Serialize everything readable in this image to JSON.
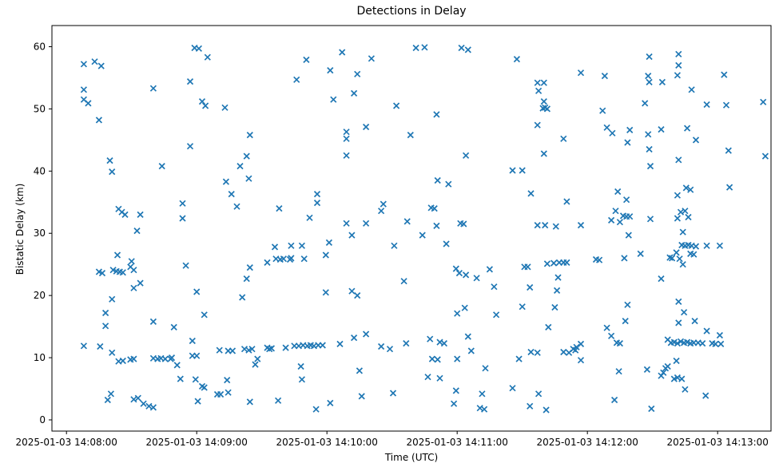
{
  "figure": {
    "title": "Detections in Delay",
    "xlabel": "Time (UTC)",
    "ylabel": "Bistatic Delay (km)"
  },
  "chart_data": {
    "type": "scatter",
    "title": "Detections in Delay",
    "xlabel": "Time (UTC)",
    "ylabel": "Bistatic Delay (km)",
    "marker": "x",
    "marker_color": "#1f77b4",
    "marker_size_px": 7,
    "grid": false,
    "legend": null,
    "x_unit": "seconds after 2025-01-03 14:08:00 UTC",
    "x_ticks_seconds": [
      0,
      60,
      120,
      180,
      240,
      300
    ],
    "x_tick_labels": [
      "2025-01-03 14:08:00",
      "2025-01-03 14:09:00",
      "2025-01-03 14:10:00",
      "2025-01-03 14:11:00",
      "2025-01-03 14:12:00",
      "2025-01-03 14:13:00"
    ],
    "y_ticks": [
      0,
      10,
      20,
      30,
      40,
      50,
      60
    ],
    "xlim_seconds": [
      -6.7,
      324.6
    ],
    "ylim": [
      -1.8,
      63.4
    ],
    "points": [
      [
        8,
        57.2
      ],
      [
        13,
        57.6
      ],
      [
        16,
        56.9
      ],
      [
        8,
        53.1
      ],
      [
        8,
        51.5
      ],
      [
        10,
        50.9
      ],
      [
        40,
        53.3
      ],
      [
        15,
        48.2
      ],
      [
        20,
        41.7
      ],
      [
        21,
        39.9
      ],
      [
        44,
        40.8
      ],
      [
        24,
        33.9
      ],
      [
        25.5,
        33.4
      ],
      [
        27,
        33.0
      ],
      [
        34,
        33.0
      ],
      [
        32.5,
        30.4
      ],
      [
        23.5,
        26.5
      ],
      [
        30,
        25.5
      ],
      [
        15,
        23.8
      ],
      [
        16.5,
        23.6
      ],
      [
        21.5,
        24.1
      ],
      [
        23,
        23.9
      ],
      [
        24.5,
        23.8
      ],
      [
        26,
        23.7
      ],
      [
        29.5,
        24.6
      ],
      [
        31,
        24.1
      ],
      [
        34,
        22.0
      ],
      [
        31,
        21.2
      ],
      [
        21,
        19.4
      ],
      [
        18,
        17.2
      ],
      [
        18,
        15.1
      ],
      [
        40,
        15.8
      ],
      [
        8,
        11.9
      ],
      [
        15.5,
        11.8
      ],
      [
        21,
        10.8
      ],
      [
        24,
        9.4
      ],
      [
        26,
        9.5
      ],
      [
        29.5,
        9.7
      ],
      [
        31,
        9.8
      ],
      [
        40,
        9.9
      ],
      [
        42,
        9.8
      ],
      [
        43.5,
        9.9
      ],
      [
        45.5,
        9.8
      ],
      [
        48,
        9.8
      ],
      [
        20.5,
        4.2
      ],
      [
        19,
        3.2
      ],
      [
        31,
        3.3
      ],
      [
        33,
        3.5
      ],
      [
        35.5,
        2.6
      ],
      [
        38,
        2.2
      ],
      [
        40,
        2.0
      ],
      [
        59,
        59.8
      ],
      [
        61,
        59.7
      ],
      [
        65,
        58.3
      ],
      [
        57,
        54.4
      ],
      [
        62.5,
        51.2
      ],
      [
        64,
        50.5
      ],
      [
        73,
        50.2
      ],
      [
        84.5,
        45.8
      ],
      [
        57,
        44.0
      ],
      [
        83,
        42.4
      ],
      [
        80,
        40.8
      ],
      [
        84,
        38.8
      ],
      [
        73.5,
        38.3
      ],
      [
        76,
        36.3
      ],
      [
        53.5,
        34.8
      ],
      [
        78.5,
        34.3
      ],
      [
        98,
        34.0
      ],
      [
        53.5,
        32.4
      ],
      [
        96,
        27.8
      ],
      [
        96.5,
        25.9
      ],
      [
        98.5,
        25.8
      ],
      [
        100,
        25.9
      ],
      [
        103,
        25.8
      ],
      [
        92.5,
        25.3
      ],
      [
        55,
        24.8
      ],
      [
        84.5,
        24.5
      ],
      [
        83,
        22.7
      ],
      [
        60,
        20.6
      ],
      [
        81,
        19.7
      ],
      [
        63.5,
        16.9
      ],
      [
        49.5,
        14.9
      ],
      [
        58,
        12.7
      ],
      [
        48.5,
        10.0
      ],
      [
        58,
        10.3
      ],
      [
        60,
        10.3
      ],
      [
        70.5,
        11.2
      ],
      [
        74.5,
        11.1
      ],
      [
        76.5,
        11.1
      ],
      [
        82,
        11.4
      ],
      [
        84,
        11.2
      ],
      [
        85.5,
        11.4
      ],
      [
        92.5,
        11.6
      ],
      [
        93.5,
        11.4
      ],
      [
        94.5,
        11.5
      ],
      [
        101,
        11.6
      ],
      [
        88,
        9.8
      ],
      [
        87,
        8.9
      ],
      [
        51,
        8.8
      ],
      [
        52.5,
        6.6
      ],
      [
        59.5,
        6.5
      ],
      [
        62.5,
        5.4
      ],
      [
        63.5,
        5.2
      ],
      [
        74,
        6.4
      ],
      [
        69.5,
        4.1
      ],
      [
        71,
        4.1
      ],
      [
        74.5,
        4.4
      ],
      [
        60.5,
        3.0
      ],
      [
        84.5,
        2.9
      ],
      [
        97.5,
        3.1
      ],
      [
        127,
        59.1
      ],
      [
        110.5,
        57.9
      ],
      [
        140.5,
        58.1
      ],
      [
        121.5,
        56.2
      ],
      [
        134,
        55.6
      ],
      [
        106,
        54.7
      ],
      [
        132.5,
        52.5
      ],
      [
        123,
        51.5
      ],
      [
        152,
        50.5
      ],
      [
        138,
        47.1
      ],
      [
        129,
        46.3
      ],
      [
        129,
        45.2
      ],
      [
        158.5,
        45.8
      ],
      [
        129,
        42.5
      ],
      [
        115.5,
        36.3
      ],
      [
        115.5,
        34.9
      ],
      [
        146,
        34.7
      ],
      [
        145,
        33.6
      ],
      [
        112,
        32.5
      ],
      [
        129,
        31.6
      ],
      [
        138,
        31.6
      ],
      [
        157,
        31.9
      ],
      [
        131.5,
        29.7
      ],
      [
        121,
        28.5
      ],
      [
        108.5,
        28.0
      ],
      [
        151,
        28.0
      ],
      [
        103.5,
        28.0
      ],
      [
        119.5,
        26.5
      ],
      [
        109.5,
        25.9
      ],
      [
        103.5,
        26.0
      ],
      [
        155.5,
        22.3
      ],
      [
        119.5,
        20.5
      ],
      [
        131.5,
        20.7
      ],
      [
        134,
        20.0
      ],
      [
        138,
        13.8
      ],
      [
        132.5,
        13.2
      ],
      [
        105,
        11.9
      ],
      [
        107,
        11.9
      ],
      [
        109,
        12.0
      ],
      [
        111,
        11.9
      ],
      [
        112.5,
        12.0
      ],
      [
        114,
        11.9
      ],
      [
        116,
        12.0
      ],
      [
        118,
        12.0
      ],
      [
        126,
        12.2
      ],
      [
        145,
        11.8
      ],
      [
        149,
        11.4
      ],
      [
        156.5,
        12.3
      ],
      [
        108,
        8.6
      ],
      [
        135,
        7.9
      ],
      [
        108.5,
        6.5
      ],
      [
        150.5,
        4.3
      ],
      [
        136,
        3.8
      ],
      [
        121.5,
        2.7
      ],
      [
        115,
        1.7
      ],
      [
        161,
        59.8
      ],
      [
        165,
        59.9
      ],
      [
        182,
        59.8
      ],
      [
        185,
        59.5
      ],
      [
        207.5,
        58.0
      ],
      [
        170.5,
        49.1
      ],
      [
        184,
        42.5
      ],
      [
        205.5,
        40.1
      ],
      [
        210,
        40.1
      ],
      [
        171,
        38.5
      ],
      [
        176,
        37.9
      ],
      [
        168,
        34.1
      ],
      [
        169.5,
        34.0
      ],
      [
        170.5,
        31.2
      ],
      [
        181.5,
        31.6
      ],
      [
        183,
        31.5
      ],
      [
        164,
        29.7
      ],
      [
        175,
        28.3
      ],
      [
        179.5,
        24.3
      ],
      [
        181,
        23.6
      ],
      [
        184,
        23.3
      ],
      [
        189,
        22.8
      ],
      [
        195,
        24.2
      ],
      [
        211,
        24.6
      ],
      [
        212.5,
        24.6
      ],
      [
        197,
        21.4
      ],
      [
        213.5,
        21.3
      ],
      [
        210,
        18.2
      ],
      [
        183.5,
        18.0
      ],
      [
        180,
        17.1
      ],
      [
        198,
        16.9
      ],
      [
        185,
        13.4
      ],
      [
        167.5,
        13.0
      ],
      [
        172,
        12.5
      ],
      [
        174,
        12.3
      ],
      [
        186.5,
        11.1
      ],
      [
        168.5,
        9.8
      ],
      [
        171,
        9.7
      ],
      [
        180,
        9.8
      ],
      [
        208.5,
        9.8
      ],
      [
        193,
        8.3
      ],
      [
        166.5,
        6.9
      ],
      [
        172,
        6.7
      ],
      [
        205.5,
        5.1
      ],
      [
        179.5,
        4.7
      ],
      [
        191.5,
        4.2
      ],
      [
        178.5,
        2.6
      ],
      [
        190.5,
        1.9
      ],
      [
        192.5,
        1.7
      ],
      [
        213.5,
        2.2
      ],
      [
        237,
        55.8
      ],
      [
        248,
        55.3
      ],
      [
        268.5,
        58.4
      ],
      [
        217,
        54.2
      ],
      [
        220,
        54.2
      ],
      [
        217.5,
        52.9
      ],
      [
        268,
        55.3
      ],
      [
        268.5,
        54.3
      ],
      [
        220,
        51.2
      ],
      [
        219.5,
        50.1
      ],
      [
        221.5,
        50.0
      ],
      [
        220.5,
        50.2
      ],
      [
        247,
        49.7
      ],
      [
        266.5,
        50.9
      ],
      [
        217,
        47.4
      ],
      [
        249,
        47.0
      ],
      [
        251.5,
        46.1
      ],
      [
        259.5,
        46.6
      ],
      [
        258.5,
        44.6
      ],
      [
        268,
        45.9
      ],
      [
        268.5,
        43.5
      ],
      [
        269,
        40.8
      ],
      [
        229,
        45.2
      ],
      [
        220,
        42.8
      ],
      [
        254,
        36.7
      ],
      [
        258,
        35.4
      ],
      [
        214,
        36.4
      ],
      [
        230.5,
        35.1
      ],
      [
        253,
        33.6
      ],
      [
        256.5,
        32.8
      ],
      [
        258,
        32.7
      ],
      [
        251,
        32.1
      ],
      [
        255,
        31.8
      ],
      [
        259.5,
        32.7
      ],
      [
        217,
        31.3
      ],
      [
        220.5,
        31.3
      ],
      [
        225.5,
        31.1
      ],
      [
        237,
        31.3
      ],
      [
        269,
        32.3
      ],
      [
        259,
        29.7
      ],
      [
        257,
        26.0
      ],
      [
        264.5,
        26.7
      ],
      [
        244,
        25.8
      ],
      [
        245.5,
        25.7
      ],
      [
        221.5,
        25.1
      ],
      [
        224.5,
        25.2
      ],
      [
        227,
        25.3
      ],
      [
        229,
        25.3
      ],
      [
        230.5,
        25.3
      ],
      [
        226.5,
        22.9
      ],
      [
        226,
        20.8
      ],
      [
        225,
        18.1
      ],
      [
        258.5,
        18.5
      ],
      [
        222,
        14.9
      ],
      [
        257.5,
        15.9
      ],
      [
        249,
        14.8
      ],
      [
        251,
        13.5
      ],
      [
        253.5,
        12.4
      ],
      [
        255,
        12.3
      ],
      [
        233.5,
        11.4
      ],
      [
        235,
        11.7
      ],
      [
        237,
        12.2
      ],
      [
        234.5,
        11.2
      ],
      [
        229,
        10.9
      ],
      [
        231.5,
        10.8
      ],
      [
        214,
        10.9
      ],
      [
        217,
        10.8
      ],
      [
        237,
        9.6
      ],
      [
        254.5,
        7.8
      ],
      [
        267.5,
        8.1
      ],
      [
        217.5,
        4.2
      ],
      [
        252.5,
        3.2
      ],
      [
        221,
        1.6
      ],
      [
        282,
        58.8
      ],
      [
        282,
        57.0
      ],
      [
        281.5,
        55.4
      ],
      [
        303,
        55.5
      ],
      [
        274.5,
        54.3
      ],
      [
        288,
        53.1
      ],
      [
        295,
        50.7
      ],
      [
        304,
        50.6
      ],
      [
        274,
        46.7
      ],
      [
        286,
        46.9
      ],
      [
        290,
        45.0
      ],
      [
        305,
        43.3
      ],
      [
        282,
        41.8
      ],
      [
        305.5,
        37.4
      ],
      [
        285.5,
        37.3
      ],
      [
        287.5,
        37.0
      ],
      [
        281.5,
        36.1
      ],
      [
        281.5,
        32.4
      ],
      [
        283,
        33.4
      ],
      [
        285,
        33.6
      ],
      [
        286.5,
        32.6
      ],
      [
        284,
        30.2
      ],
      [
        283.5,
        28.1
      ],
      [
        285,
        28.0
      ],
      [
        286.5,
        28.1
      ],
      [
        288,
        28.0
      ],
      [
        290,
        27.9
      ],
      [
        295,
        28.0
      ],
      [
        301,
        28.0
      ],
      [
        278,
        26.1
      ],
      [
        279,
        26.0
      ],
      [
        281,
        26.9
      ],
      [
        282.5,
        25.9
      ],
      [
        284,
        25.0
      ],
      [
        287.5,
        26.7
      ],
      [
        289,
        26.6
      ],
      [
        274,
        22.7
      ],
      [
        282,
        19.0
      ],
      [
        284.5,
        17.3
      ],
      [
        282,
        15.6
      ],
      [
        289.5,
        15.9
      ],
      [
        295,
        14.3
      ],
      [
        301,
        13.6
      ],
      [
        277,
        12.9
      ],
      [
        278.5,
        12.4
      ],
      [
        280,
        12.5
      ],
      [
        281.5,
        12.3
      ],
      [
        283,
        12.6
      ],
      [
        284.5,
        12.4
      ],
      [
        286,
        12.5
      ],
      [
        287.5,
        12.3
      ],
      [
        289,
        12.4
      ],
      [
        291,
        12.4
      ],
      [
        293,
        12.3
      ],
      [
        297.5,
        12.3
      ],
      [
        299,
        12.2
      ],
      [
        301.5,
        12.2
      ],
      [
        281,
        9.5
      ],
      [
        276,
        8.3
      ],
      [
        277,
        8.6
      ],
      [
        274,
        7.1
      ],
      [
        275,
        7.6
      ],
      [
        280,
        6.6
      ],
      [
        281.5,
        6.8
      ],
      [
        283.5,
        6.6
      ],
      [
        285,
        4.9
      ],
      [
        294.5,
        3.9
      ],
      [
        269.5,
        1.8
      ],
      [
        321,
        51.1
      ],
      [
        322,
        42.4
      ]
    ]
  }
}
